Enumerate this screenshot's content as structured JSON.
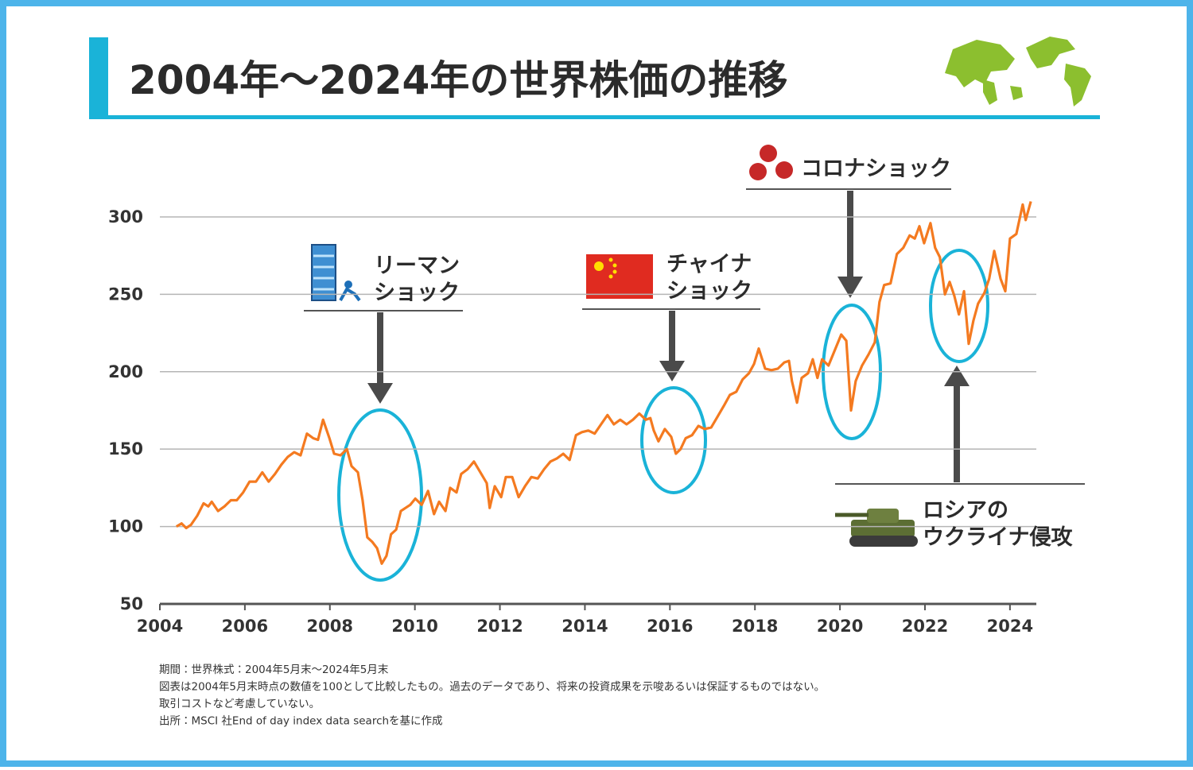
{
  "chart_data": {
    "type": "line",
    "title": "2004年～2024年の世界株価の推移",
    "color": "#f47a20",
    "x": [
      2004.39,
      2004.51,
      2004.62,
      2004.73,
      2004.88,
      2005.03,
      2005.14,
      2005.22,
      2005.37,
      2005.52,
      2005.67,
      2005.81,
      2005.96,
      2006.11,
      2006.26,
      2006.41,
      2006.56,
      2006.71,
      2006.86,
      2007.01,
      2007.16,
      2007.31,
      2007.46,
      2007.61,
      2007.72,
      2007.84,
      2007.99,
      2008.1,
      2008.25,
      2008.4,
      2008.51,
      2008.66,
      2008.77,
      2008.88,
      2009.0,
      2009.11,
      2009.22,
      2009.33,
      2009.44,
      2009.56,
      2009.67,
      2009.78,
      2009.89,
      2010.01,
      2010.16,
      2010.31,
      2010.45,
      2010.57,
      2010.72,
      2010.83,
      2010.98,
      2011.09,
      2011.24,
      2011.39,
      2011.54,
      2011.69,
      2011.76,
      2011.88,
      2012.03,
      2012.14,
      2012.29,
      2012.44,
      2012.59,
      2012.74,
      2012.89,
      2013.04,
      2013.19,
      2013.34,
      2013.49,
      2013.64,
      2013.79,
      2013.93,
      2014.08,
      2014.23,
      2014.38,
      2014.53,
      2014.68,
      2014.83,
      2014.98,
      2015.13,
      2015.28,
      2015.43,
      2015.54,
      2015.62,
      2015.73,
      2015.88,
      2016.03,
      2016.14,
      2016.25,
      2016.37,
      2016.52,
      2016.67,
      2016.82,
      2016.97,
      2017.12,
      2017.27,
      2017.41,
      2017.56,
      2017.71,
      2017.86,
      2017.98,
      2018.09,
      2018.24,
      2018.39,
      2018.54,
      2018.69,
      2018.8,
      2018.87,
      2018.99,
      2019.1,
      2019.25,
      2019.36,
      2019.47,
      2019.58,
      2019.73,
      2019.88,
      2020.03,
      2020.15,
      2020.26,
      2020.37,
      2020.52,
      2020.67,
      2020.82,
      2020.93,
      2021.04,
      2021.19,
      2021.34,
      2021.49,
      2021.64,
      2021.76,
      2021.87,
      2021.98,
      2022.13,
      2022.24,
      2022.35,
      2022.47,
      2022.58,
      2022.69,
      2022.8,
      2022.92,
      2023.03,
      2023.14,
      2023.25,
      2023.4,
      2023.51,
      2023.63,
      2023.78,
      2023.89,
      2024.0,
      2024.15,
      2024.3,
      2024.37,
      2024.49
    ],
    "values": [
      100,
      102,
      99,
      101,
      107,
      115,
      113,
      116,
      110,
      113,
      117,
      117,
      122,
      129,
      129,
      135,
      129,
      134,
      140,
      145,
      148,
      146,
      160,
      157,
      156,
      169,
      157,
      147,
      146,
      150,
      139,
      135,
      117,
      93,
      90,
      86,
      76,
      81,
      95,
      98,
      110,
      112,
      114,
      118,
      114,
      123,
      108,
      116,
      110,
      125,
      122,
      134,
      137,
      142,
      135,
      128,
      112,
      126,
      119,
      132,
      132,
      119,
      126,
      132,
      131,
      137,
      142,
      144,
      147,
      143,
      159,
      161,
      162,
      160,
      166,
      172,
      166,
      169,
      166,
      169,
      173,
      169,
      170,
      162,
      155,
      163,
      158,
      147,
      150,
      157,
      159,
      165,
      163,
      164,
      171,
      178,
      185,
      187,
      195,
      199,
      205,
      215,
      202,
      201,
      202,
      206,
      207,
      194,
      180,
      196,
      199,
      208,
      196,
      208,
      204,
      214,
      224,
      220,
      175,
      194,
      204,
      211,
      219,
      245,
      256,
      257,
      276,
      280,
      288,
      286,
      294,
      283,
      296,
      280,
      274,
      250,
      258,
      249,
      237,
      252,
      218,
      233,
      244,
      251,
      260,
      278,
      260,
      252,
      286,
      289,
      308,
      298,
      310
    ],
    "xlim": [
      2004,
      2024.62
    ],
    "ylim": [
      50,
      320
    ],
    "xticks": [
      2004,
      2006,
      2008,
      2010,
      2012,
      2014,
      2016,
      2018,
      2020,
      2022,
      2024
    ],
    "yticks": [
      50,
      100,
      150,
      200,
      250,
      300
    ],
    "grid": true,
    "annotations": [
      {
        "lines": [
          "リーマン",
          "ショック"
        ]
      },
      {
        "lines": [
          "チャイナ",
          "ショック"
        ]
      },
      {
        "lines": [
          "コロナショック"
        ]
      },
      {
        "lines": [
          "ロシアの",
          "ウクライナ侵攻"
        ]
      }
    ],
    "footnotes": [
      "期間：世界株式：2004年5月末～2024年5月末",
      "図表は2004年5月末時点の数値を100として比較したもの。過去のデータであり、将来の投資成果を示唆あるいは保証するものではない。",
      "取引コストなど考慮していない。",
      "出所：MSCI 社End of day index data searchを基に作成"
    ]
  }
}
